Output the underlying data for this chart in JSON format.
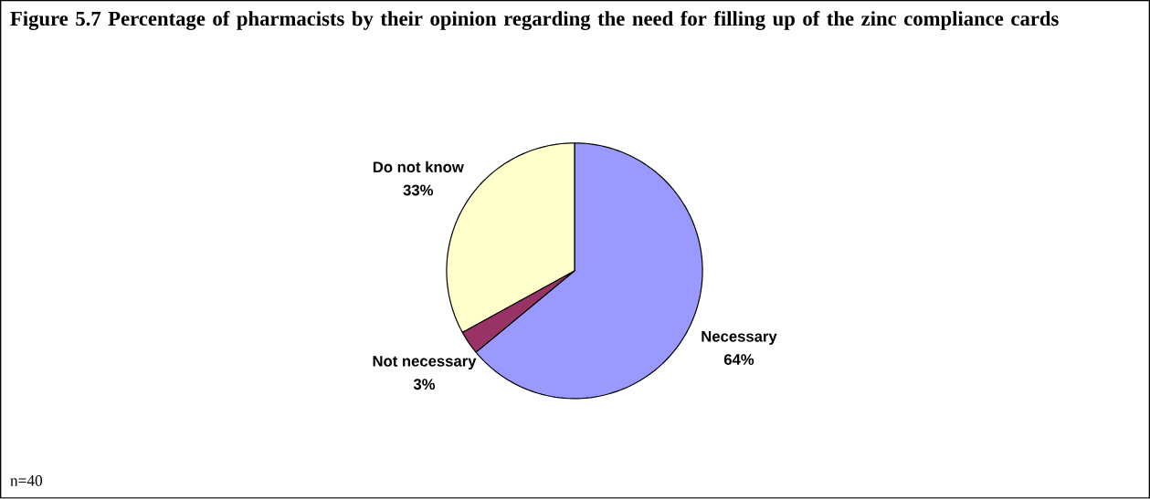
{
  "chart_data": {
    "type": "pie",
    "title": "Figure 5.7 Percentage of pharmacists by their opinion regarding the need for filling up of the zinc compliance cards",
    "categories": [
      "Necessary",
      "Not necessary",
      "Do not know"
    ],
    "values": [
      64,
      3,
      33
    ],
    "value_labels": [
      "64%",
      "3%",
      "33%"
    ],
    "colors": [
      "#9999ff",
      "#993366",
      "#ffffcc"
    ],
    "annotations": [
      "n=40"
    ]
  }
}
